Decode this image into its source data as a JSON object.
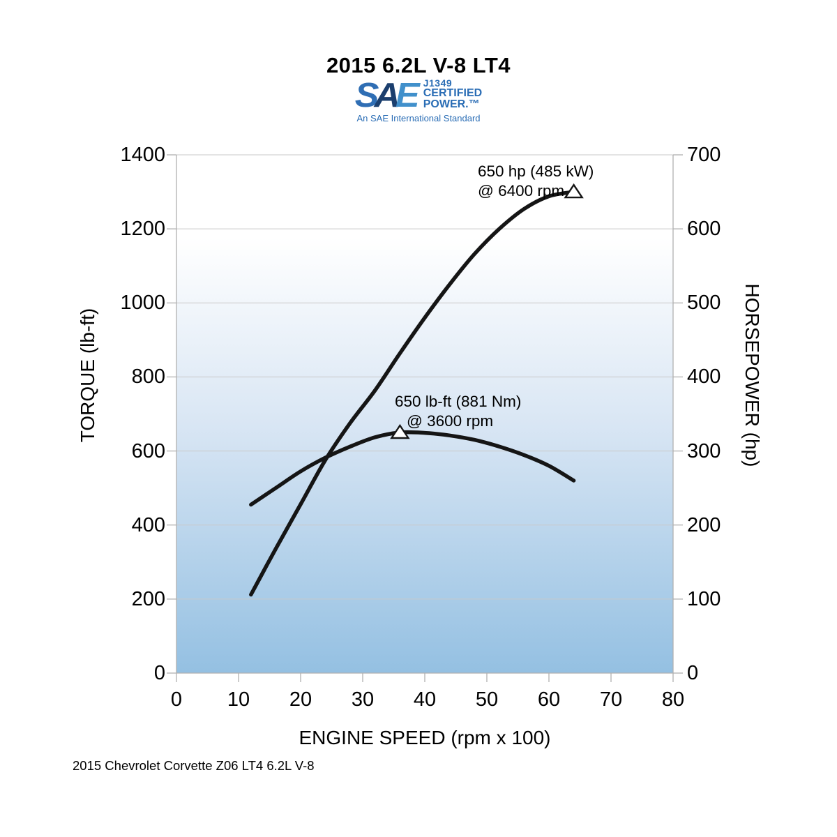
{
  "title": "2015 6.2L V-8 LT4",
  "sae_logo": {
    "s": "S",
    "a": "A",
    "e": "E",
    "cert_line1": "J1349",
    "cert_line2": "CERTIFIED",
    "cert_line3": "POWER.™",
    "tagline": "An SAE International Standard",
    "colors": {
      "s": "#2f6eb4",
      "a": "#1b3f6e",
      "e": "#4190cb",
      "text": "#2a6db5"
    }
  },
  "chart_data": {
    "type": "line",
    "xlabel": "ENGINE SPEED (rpm x 100)",
    "x_ticks": [
      0,
      10,
      20,
      30,
      40,
      50,
      60,
      70,
      80
    ],
    "x_range": [
      0,
      80
    ],
    "left_axis": {
      "label": "TORQUE (lb-ft)",
      "ticks": [
        0,
        200,
        400,
        600,
        800,
        1000,
        1200,
        1400
      ],
      "range": [
        0,
        1400
      ]
    },
    "right_axis": {
      "label": "HORSEPOWER (hp)",
      "ticks": [
        0,
        100,
        200,
        300,
        400,
        500,
        600,
        700
      ],
      "range": [
        0,
        700
      ]
    },
    "x": [
      12,
      16,
      20,
      24,
      28,
      32,
      36,
      40,
      44,
      48,
      52,
      56,
      60,
      64
    ],
    "series": [
      {
        "name": "torque",
        "unit": "lb-ft",
        "axis": "left",
        "values": [
          455,
          500,
          545,
          582,
          612,
          637,
          650,
          649,
          642,
          630,
          612,
          589,
          560,
          520
        ],
        "peak": {
          "x": 36,
          "value": 650,
          "marker": "triangle"
        }
      },
      {
        "name": "horsepower",
        "unit": "hp",
        "axis": "right",
        "values": [
          106,
          168,
          228,
          288,
          338,
          382,
          432,
          480,
          525,
          566,
          600,
          627,
          644,
          650
        ],
        "peak": {
          "x": 64,
          "value": 650,
          "marker": "triangle"
        }
      }
    ],
    "grid": true,
    "legend_position": "none",
    "line_color": "#151515",
    "grid_color": "#c9c9c9",
    "axis_color": "#b0b0b0",
    "plot_gradient_top": "#ffffff",
    "plot_gradient_mid": "#d9e6f4",
    "plot_gradient_bottom": "#94c0e2"
  },
  "annotations": {
    "hp_peak": {
      "line1": "650 hp (485 kW)",
      "line2": "@ 6400 rpm"
    },
    "tq_peak": {
      "line1": "650 lb-ft (881 Nm)",
      "line2": "@ 3600 rpm"
    }
  },
  "footer": "2015 Chevrolet Corvette Z06 LT4 6.2L V-8"
}
